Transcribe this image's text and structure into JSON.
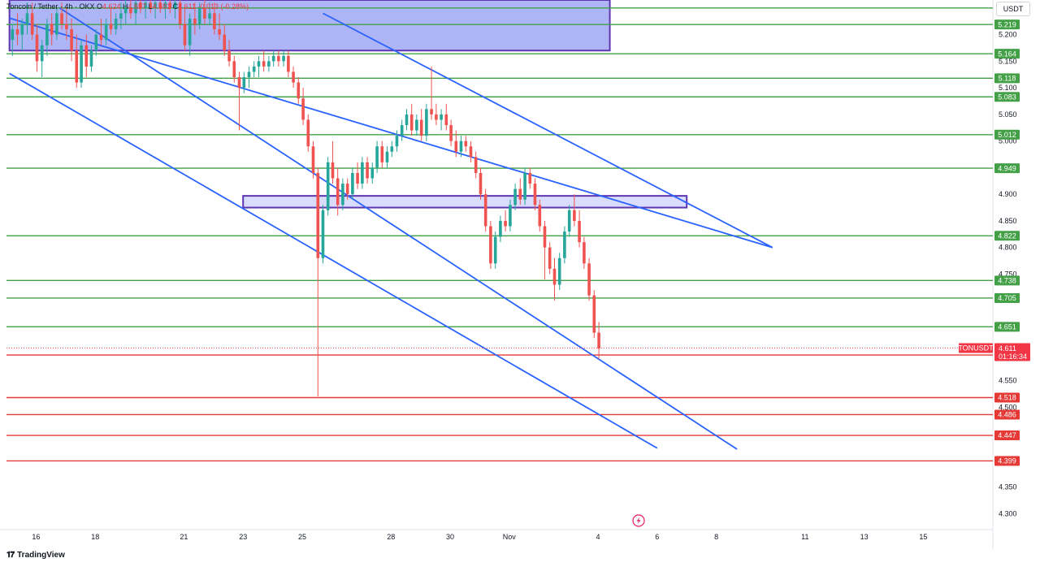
{
  "header": {
    "symbol_title": "Toncoin / Tether",
    "interval": "4h",
    "exchange": "OKX",
    "ohlc": {
      "o_label": "O",
      "o": "4.624",
      "h_label": "H",
      "h": "4.657",
      "l_label": "L",
      "l": "4.591",
      "c_label": "C",
      "c": "4.611",
      "change": "-0.013 (-0.28%)"
    },
    "currency": "USDT"
  },
  "footer": {
    "brand": "TradingView"
  },
  "colors": {
    "up": "#26a69a",
    "down": "#ef5350",
    "green_level": "#43a047",
    "red_level": "#e53935",
    "channel": "#2962ff",
    "box_stroke": "#5e35b1",
    "box_fill": "#9fa8f5",
    "current_tag": "#f23645"
  },
  "chart_data": {
    "type": "candlestick",
    "symbol": "TONUSDT",
    "y_range": [
      4.27,
      5.265
    ],
    "y_ticks": [
      "5.200",
      "5.150",
      "5.100",
      "5.050",
      "5.000",
      "4.900",
      "4.850",
      "4.800",
      "4.750",
      "4.550",
      "4.500",
      "4.350",
      "4.300"
    ],
    "x_ticks": [
      {
        "label": "16",
        "day": 16
      },
      {
        "label": "18",
        "day": 18
      },
      {
        "label": "21",
        "day": 21
      },
      {
        "label": "23",
        "day": 23
      },
      {
        "label": "25",
        "day": 25
      },
      {
        "label": "28",
        "day": 28
      },
      {
        "label": "30",
        "day": 30
      },
      {
        "label": "Nov",
        "day": 32
      },
      {
        "label": "4",
        "day": 35
      },
      {
        "label": "6",
        "day": 37
      },
      {
        "label": "8",
        "day": 39
      },
      {
        "label": "11",
        "day": 42
      },
      {
        "label": "13",
        "day": 44
      },
      {
        "label": "15",
        "day": 46
      }
    ],
    "resistance_levels": [
      "5.219",
      "5.164",
      "5.118",
      "5.083",
      "5.012",
      "4.949",
      "4.822",
      "4.738",
      "4.705",
      "4.651"
    ],
    "support_levels": [
      "4.598",
      "4.518",
      "4.486",
      "4.447",
      "4.399"
    ],
    "extra_level_lines": [
      5.25
    ],
    "current_price": {
      "symbol": "TONUSDT",
      "value": "4.611",
      "countdown": "01:16:34"
    },
    "zones": [
      {
        "name": "upper-box",
        "day_from": 15.1,
        "day_to": 35.4,
        "price_high": 5.275,
        "price_low": 5.17
      },
      {
        "name": "mid-box",
        "day_from": 23.0,
        "day_to": 38.0,
        "price_high": 4.897,
        "price_low": 4.875
      }
    ],
    "channel_lines": [
      {
        "from": {
          "day": 15.1,
          "price": 5.231
        },
        "to": {
          "day": 40.9,
          "price": 4.8
        }
      },
      {
        "from": {
          "day": 15.1,
          "price": 5.127
        },
        "to": {
          "day": 37.0,
          "price": 4.423
        }
      },
      {
        "from": {
          "day": 16.8,
          "price": 5.25
        },
        "to": {
          "day": 39.7,
          "price": 4.421
        }
      },
      {
        "from": {
          "day": 25.7,
          "price": 5.24
        },
        "to": {
          "day": 40.9,
          "price": 4.8
        }
      }
    ],
    "candles": [
      {
        "t": 15.2,
        "o": 5.19,
        "h": 5.22,
        "l": 5.16,
        "c": 5.21
      },
      {
        "t": 15.37,
        "o": 5.21,
        "h": 5.24,
        "l": 5.18,
        "c": 5.2
      },
      {
        "t": 15.53,
        "o": 5.2,
        "h": 5.23,
        "l": 5.17,
        "c": 5.22
      },
      {
        "t": 15.7,
        "o": 5.22,
        "h": 5.26,
        "l": 5.2,
        "c": 5.24
      },
      {
        "t": 15.87,
        "o": 5.24,
        "h": 5.26,
        "l": 5.19,
        "c": 5.2
      },
      {
        "t": 16.03,
        "o": 5.2,
        "h": 5.22,
        "l": 5.13,
        "c": 5.15
      },
      {
        "t": 16.2,
        "o": 5.15,
        "h": 5.19,
        "l": 5.12,
        "c": 5.18
      },
      {
        "t": 16.37,
        "o": 5.18,
        "h": 5.23,
        "l": 5.16,
        "c": 5.22
      },
      {
        "t": 16.53,
        "o": 5.22,
        "h": 5.24,
        "l": 5.18,
        "c": 5.2
      },
      {
        "t": 16.7,
        "o": 5.2,
        "h": 5.25,
        "l": 5.19,
        "c": 5.24
      },
      {
        "t": 16.87,
        "o": 5.24,
        "h": 5.26,
        "l": 5.21,
        "c": 5.22
      },
      {
        "t": 17.03,
        "o": 5.22,
        "h": 5.25,
        "l": 5.19,
        "c": 5.21
      },
      {
        "t": 17.2,
        "o": 5.21,
        "h": 5.23,
        "l": 5.15,
        "c": 5.17
      },
      {
        "t": 17.37,
        "o": 5.17,
        "h": 5.2,
        "l": 5.1,
        "c": 5.11
      },
      {
        "t": 17.53,
        "o": 5.11,
        "h": 5.19,
        "l": 5.1,
        "c": 5.18
      },
      {
        "t": 17.7,
        "o": 5.18,
        "h": 5.2,
        "l": 5.12,
        "c": 5.14
      },
      {
        "t": 17.87,
        "o": 5.14,
        "h": 5.18,
        "l": 5.13,
        "c": 5.17
      },
      {
        "t": 18.03,
        "o": 5.17,
        "h": 5.21,
        "l": 5.16,
        "c": 5.2
      },
      {
        "t": 18.2,
        "o": 5.2,
        "h": 5.23,
        "l": 5.18,
        "c": 5.19
      },
      {
        "t": 18.37,
        "o": 5.19,
        "h": 5.23,
        "l": 5.18,
        "c": 5.22
      },
      {
        "t": 18.53,
        "o": 5.22,
        "h": 5.25,
        "l": 5.2,
        "c": 5.21
      },
      {
        "t": 18.7,
        "o": 5.21,
        "h": 5.24,
        "l": 5.2,
        "c": 5.23
      },
      {
        "t": 18.87,
        "o": 5.23,
        "h": 5.26,
        "l": 5.21,
        "c": 5.24
      },
      {
        "t": 19.03,
        "o": 5.24,
        "h": 5.27,
        "l": 5.22,
        "c": 5.25
      },
      {
        "t": 19.2,
        "o": 5.25,
        "h": 5.27,
        "l": 5.23,
        "c": 5.24
      },
      {
        "t": 19.37,
        "o": 5.24,
        "h": 5.27,
        "l": 5.22,
        "c": 5.26
      },
      {
        "t": 19.53,
        "o": 5.26,
        "h": 5.27,
        "l": 5.24,
        "c": 5.25
      },
      {
        "t": 19.7,
        "o": 5.25,
        "h": 5.27,
        "l": 5.23,
        "c": 5.26
      },
      {
        "t": 19.87,
        "o": 5.26,
        "h": 5.27,
        "l": 5.24,
        "c": 5.25
      },
      {
        "t": 20.03,
        "o": 5.25,
        "h": 5.27,
        "l": 5.23,
        "c": 5.26
      },
      {
        "t": 20.2,
        "o": 5.26,
        "h": 5.27,
        "l": 5.24,
        "c": 5.25
      },
      {
        "t": 20.37,
        "o": 5.25,
        "h": 5.27,
        "l": 5.23,
        "c": 5.26
      },
      {
        "t": 20.53,
        "o": 5.26,
        "h": 5.27,
        "l": 5.24,
        "c": 5.25
      },
      {
        "t": 20.7,
        "o": 5.25,
        "h": 5.27,
        "l": 5.23,
        "c": 5.26
      },
      {
        "t": 20.87,
        "o": 5.26,
        "h": 5.27,
        "l": 5.21,
        "c": 5.22
      },
      {
        "t": 21.03,
        "o": 5.22,
        "h": 5.25,
        "l": 5.17,
        "c": 5.18
      },
      {
        "t": 21.2,
        "o": 5.18,
        "h": 5.24,
        "l": 5.16,
        "c": 5.23
      },
      {
        "t": 21.37,
        "o": 5.23,
        "h": 5.26,
        "l": 5.2,
        "c": 5.22
      },
      {
        "t": 21.53,
        "o": 5.22,
        "h": 5.26,
        "l": 5.21,
        "c": 5.25
      },
      {
        "t": 21.7,
        "o": 5.25,
        "h": 5.27,
        "l": 5.22,
        "c": 5.23
      },
      {
        "t": 21.87,
        "o": 5.23,
        "h": 5.26,
        "l": 5.22,
        "c": 5.24
      },
      {
        "t": 22.03,
        "o": 5.24,
        "h": 5.26,
        "l": 5.2,
        "c": 5.21
      },
      {
        "t": 22.2,
        "o": 5.21,
        "h": 5.24,
        "l": 5.19,
        "c": 5.2
      },
      {
        "t": 22.37,
        "o": 5.2,
        "h": 5.22,
        "l": 5.16,
        "c": 5.17
      },
      {
        "t": 22.53,
        "o": 5.17,
        "h": 5.19,
        "l": 5.14,
        "c": 5.15
      },
      {
        "t": 22.7,
        "o": 5.15,
        "h": 5.16,
        "l": 5.11,
        "c": 5.12
      },
      {
        "t": 22.87,
        "o": 5.12,
        "h": 5.13,
        "l": 5.02,
        "c": 5.1
      },
      {
        "t": 23.03,
        "o": 5.1,
        "h": 5.13,
        "l": 5.09,
        "c": 5.12
      },
      {
        "t": 23.2,
        "o": 5.12,
        "h": 5.14,
        "l": 5.1,
        "c": 5.13
      },
      {
        "t": 23.37,
        "o": 5.13,
        "h": 5.15,
        "l": 5.12,
        "c": 5.14
      },
      {
        "t": 23.53,
        "o": 5.14,
        "h": 5.16,
        "l": 5.12,
        "c": 5.15
      },
      {
        "t": 23.7,
        "o": 5.15,
        "h": 5.17,
        "l": 5.13,
        "c": 5.14
      },
      {
        "t": 23.87,
        "o": 5.14,
        "h": 5.16,
        "l": 5.13,
        "c": 5.15
      },
      {
        "t": 24.03,
        "o": 5.15,
        "h": 5.17,
        "l": 5.14,
        "c": 5.16
      },
      {
        "t": 24.2,
        "o": 5.16,
        "h": 5.17,
        "l": 5.14,
        "c": 5.15
      },
      {
        "t": 24.37,
        "o": 5.15,
        "h": 5.17,
        "l": 5.14,
        "c": 5.16
      },
      {
        "t": 24.53,
        "o": 5.16,
        "h": 5.17,
        "l": 5.12,
        "c": 5.13
      },
      {
        "t": 24.7,
        "o": 5.13,
        "h": 5.14,
        "l": 5.1,
        "c": 5.11
      },
      {
        "t": 24.87,
        "o": 5.11,
        "h": 5.12,
        "l": 5.07,
        "c": 5.08
      },
      {
        "t": 25.03,
        "o": 5.08,
        "h": 5.1,
        "l": 5.03,
        "c": 5.04
      },
      {
        "t": 25.2,
        "o": 5.04,
        "h": 5.05,
        "l": 4.98,
        "c": 4.99
      },
      {
        "t": 25.37,
        "o": 4.99,
        "h": 5.0,
        "l": 4.93,
        "c": 4.94
      },
      {
        "t": 25.53,
        "o": 4.94,
        "h": 4.95,
        "l": 4.52,
        "c": 4.78
      },
      {
        "t": 25.7,
        "o": 4.78,
        "h": 4.88,
        "l": 4.77,
        "c": 4.87
      },
      {
        "t": 25.87,
        "o": 4.87,
        "h": 4.97,
        "l": 4.86,
        "c": 4.96
      },
      {
        "t": 26.03,
        "o": 4.96,
        "h": 5.0,
        "l": 4.92,
        "c": 4.93
      },
      {
        "t": 26.2,
        "o": 4.93,
        "h": 4.95,
        "l": 4.86,
        "c": 4.88
      },
      {
        "t": 26.37,
        "o": 4.88,
        "h": 4.93,
        "l": 4.87,
        "c": 4.92
      },
      {
        "t": 26.53,
        "o": 4.92,
        "h": 4.93,
        "l": 4.89,
        "c": 4.9
      },
      {
        "t": 26.7,
        "o": 4.9,
        "h": 4.95,
        "l": 4.89,
        "c": 4.94
      },
      {
        "t": 26.87,
        "o": 4.94,
        "h": 4.96,
        "l": 4.91,
        "c": 4.92
      },
      {
        "t": 27.03,
        "o": 4.92,
        "h": 4.97,
        "l": 4.91,
        "c": 4.96
      },
      {
        "t": 27.2,
        "o": 4.96,
        "h": 4.97,
        "l": 4.92,
        "c": 4.93
      },
      {
        "t": 27.37,
        "o": 4.93,
        "h": 4.96,
        "l": 4.92,
        "c": 4.95
      },
      {
        "t": 27.53,
        "o": 4.95,
        "h": 5.0,
        "l": 4.94,
        "c": 4.99
      },
      {
        "t": 27.7,
        "o": 4.99,
        "h": 5.0,
        "l": 4.95,
        "c": 4.96
      },
      {
        "t": 27.87,
        "o": 4.96,
        "h": 4.99,
        "l": 4.95,
        "c": 4.98
      },
      {
        "t": 28.03,
        "o": 4.98,
        "h": 5.0,
        "l": 4.97,
        "c": 4.99
      },
      {
        "t": 28.2,
        "o": 4.99,
        "h": 5.02,
        "l": 4.98,
        "c": 5.01
      },
      {
        "t": 28.37,
        "o": 5.01,
        "h": 5.04,
        "l": 5.0,
        "c": 5.03
      },
      {
        "t": 28.53,
        "o": 5.03,
        "h": 5.06,
        "l": 5.02,
        "c": 5.05
      },
      {
        "t": 28.7,
        "o": 5.05,
        "h": 5.07,
        "l": 5.01,
        "c": 5.02
      },
      {
        "t": 28.87,
        "o": 5.02,
        "h": 5.05,
        "l": 5.01,
        "c": 5.04
      },
      {
        "t": 29.03,
        "o": 5.04,
        "h": 5.06,
        "l": 5.0,
        "c": 5.01
      },
      {
        "t": 29.2,
        "o": 5.01,
        "h": 5.07,
        "l": 5.0,
        "c": 5.06
      },
      {
        "t": 29.37,
        "o": 5.06,
        "h": 5.14,
        "l": 5.04,
        "c": 5.05
      },
      {
        "t": 29.53,
        "o": 5.05,
        "h": 5.07,
        "l": 5.03,
        "c": 5.04
      },
      {
        "t": 29.7,
        "o": 5.04,
        "h": 5.06,
        "l": 5.02,
        "c": 5.05
      },
      {
        "t": 29.87,
        "o": 5.05,
        "h": 5.07,
        "l": 5.02,
        "c": 5.03
      },
      {
        "t": 30.03,
        "o": 5.03,
        "h": 5.04,
        "l": 4.99,
        "c": 5.0
      },
      {
        "t": 30.2,
        "o": 5.0,
        "h": 5.02,
        "l": 4.97,
        "c": 4.98
      },
      {
        "t": 30.37,
        "o": 4.98,
        "h": 5.01,
        "l": 4.97,
        "c": 5.0
      },
      {
        "t": 30.53,
        "o": 5.0,
        "h": 5.01,
        "l": 4.98,
        "c": 4.99
      },
      {
        "t": 30.7,
        "o": 4.99,
        "h": 5.0,
        "l": 4.96,
        "c": 4.97
      },
      {
        "t": 30.87,
        "o": 4.97,
        "h": 4.98,
        "l": 4.93,
        "c": 4.94
      },
      {
        "t": 31.03,
        "o": 4.94,
        "h": 4.95,
        "l": 4.89,
        "c": 4.9
      },
      {
        "t": 31.2,
        "o": 4.9,
        "h": 4.91,
        "l": 4.83,
        "c": 4.84
      },
      {
        "t": 31.37,
        "o": 4.84,
        "h": 4.85,
        "l": 4.76,
        "c": 4.77
      },
      {
        "t": 31.53,
        "o": 4.77,
        "h": 4.83,
        "l": 4.76,
        "c": 4.82
      },
      {
        "t": 31.7,
        "o": 4.82,
        "h": 4.86,
        "l": 4.81,
        "c": 4.85
      },
      {
        "t": 31.87,
        "o": 4.85,
        "h": 4.87,
        "l": 4.83,
        "c": 4.84
      },
      {
        "t": 32.03,
        "o": 4.84,
        "h": 4.89,
        "l": 4.83,
        "c": 4.88
      },
      {
        "t": 32.2,
        "o": 4.88,
        "h": 4.92,
        "l": 4.87,
        "c": 4.91
      },
      {
        "t": 32.37,
        "o": 4.91,
        "h": 4.93,
        "l": 4.88,
        "c": 4.89
      },
      {
        "t": 32.53,
        "o": 4.89,
        "h": 4.95,
        "l": 4.88,
        "c": 4.94
      },
      {
        "t": 32.7,
        "o": 4.94,
        "h": 4.95,
        "l": 4.91,
        "c": 4.92
      },
      {
        "t": 32.87,
        "o": 4.92,
        "h": 4.93,
        "l": 4.87,
        "c": 4.88
      },
      {
        "t": 33.03,
        "o": 4.88,
        "h": 4.89,
        "l": 4.83,
        "c": 4.84
      },
      {
        "t": 33.2,
        "o": 4.84,
        "h": 4.85,
        "l": 4.74,
        "c": 4.8
      },
      {
        "t": 33.37,
        "o": 4.8,
        "h": 4.81,
        "l": 4.75,
        "c": 4.76
      },
      {
        "t": 33.53,
        "o": 4.76,
        "h": 4.78,
        "l": 4.7,
        "c": 4.73
      },
      {
        "t": 33.7,
        "o": 4.73,
        "h": 4.79,
        "l": 4.72,
        "c": 4.78
      },
      {
        "t": 33.87,
        "o": 4.78,
        "h": 4.84,
        "l": 4.77,
        "c": 4.83
      },
      {
        "t": 34.03,
        "o": 4.83,
        "h": 4.88,
        "l": 4.82,
        "c": 4.87
      },
      {
        "t": 34.2,
        "o": 4.87,
        "h": 4.9,
        "l": 4.84,
        "c": 4.85
      },
      {
        "t": 34.37,
        "o": 4.85,
        "h": 4.87,
        "l": 4.8,
        "c": 4.81
      },
      {
        "t": 34.53,
        "o": 4.81,
        "h": 4.82,
        "l": 4.76,
        "c": 4.77
      },
      {
        "t": 34.7,
        "o": 4.77,
        "h": 4.78,
        "l": 4.7,
        "c": 4.71
      },
      {
        "t": 34.87,
        "o": 4.71,
        "h": 4.72,
        "l": 4.63,
        "c": 4.64
      },
      {
        "t": 35.03,
        "o": 4.64,
        "h": 4.66,
        "l": 4.59,
        "c": 4.61
      }
    ]
  }
}
